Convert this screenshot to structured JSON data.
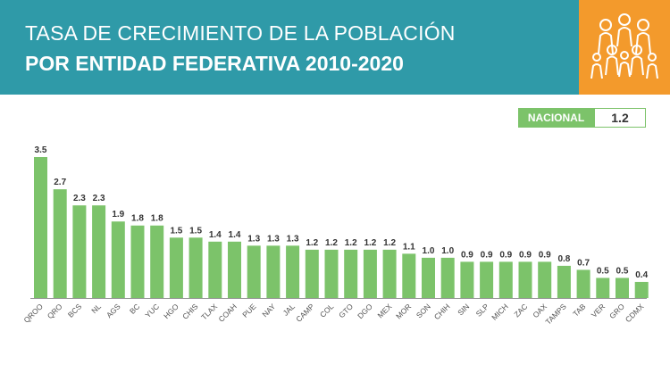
{
  "header": {
    "title_line1": "TASA DE CRECIMIENTO DE LA POBLACIÓN",
    "title_line2": "POR ENTIDAD FEDERATIVA 2010-2020",
    "logo_icon": "family-people-icon"
  },
  "national": {
    "label": "NACIONAL",
    "value": "1.2"
  },
  "colors": {
    "header_bg": "#2f9aa8",
    "logo_bg": "#f39a2c",
    "bar": "#7cc36a",
    "axis": "#9a9a9a"
  },
  "chart_data": {
    "type": "bar",
    "title": "TASA DE CRECIMIENTO DE LA POBLACIÓN POR ENTIDAD FEDERATIVA 2010-2020",
    "xlabel": "",
    "ylabel": "",
    "ylim": [
      0,
      3.5
    ],
    "grid": false,
    "categories": [
      "QROO",
      "QRO",
      "BCS",
      "NL",
      "AGS",
      "BC",
      "YUC",
      "HGO",
      "CHIS",
      "TLAX",
      "COAH",
      "PUE",
      "NAY",
      "JAL",
      "CAMP",
      "COL",
      "GTO",
      "DGO",
      "MEX",
      "MOR",
      "SON",
      "CHIH",
      "SIN",
      "SLP",
      "MICH",
      "ZAC",
      "OAX",
      "TAMPS",
      "TAB",
      "VER",
      "GRO",
      "CDMX"
    ],
    "values": [
      3.5,
      2.7,
      2.3,
      2.3,
      1.9,
      1.8,
      1.8,
      1.5,
      1.5,
      1.4,
      1.4,
      1.3,
      1.3,
      1.3,
      1.2,
      1.2,
      1.2,
      1.2,
      1.2,
      1.1,
      1.0,
      1.0,
      0.9,
      0.9,
      0.9,
      0.9,
      0.9,
      0.8,
      0.7,
      0.5,
      0.5,
      0.4
    ],
    "value_labels": [
      "3.5",
      "2.7",
      "2.3",
      "2.3",
      "1.9",
      "1.8",
      "1.8",
      "1.5",
      "1.5",
      "1.4",
      "1.4",
      "1.3",
      "1.3",
      "1.3",
      "1.2",
      "1.2",
      "1.2",
      "1.2",
      "1.2",
      "1.1",
      "1.0",
      "1.0",
      "0.9",
      "0.9",
      "0.9",
      "0.9",
      "0.9",
      "0.8",
      "0.7",
      "0.5",
      "0.5",
      "0.4"
    ]
  }
}
